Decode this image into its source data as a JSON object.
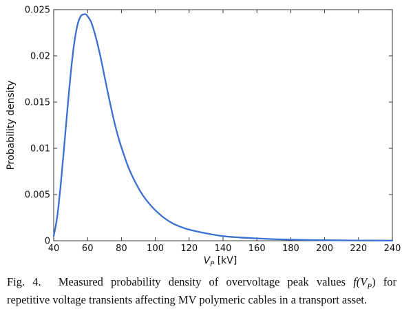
{
  "chart_data": {
    "type": "line",
    "title": "",
    "xlabel": "V_P [kV]",
    "xlabel_main": "V",
    "xlabel_sub": "P",
    "xlabel_unit": " [kV]",
    "ylabel": "Probability density",
    "xlim": [
      40,
      240
    ],
    "ylim": [
      0,
      0.025
    ],
    "x_ticks": [
      40,
      60,
      80,
      100,
      120,
      140,
      160,
      180,
      200,
      220,
      240
    ],
    "x_tick_labels": [
      "40",
      "60",
      "80",
      "100",
      "120",
      "140",
      "160",
      "180",
      "200",
      "220",
      "240"
    ],
    "y_ticks": [
      0,
      0.005,
      0.01,
      0.015,
      0.02,
      0.025
    ],
    "y_tick_labels": [
      "0",
      "0.005",
      "0.01",
      "0.015",
      "0.02",
      "0.025"
    ],
    "grid": false,
    "line_color": "#3b6fd1",
    "series": [
      {
        "x": [
          40,
          42,
          44,
          46,
          48,
          50,
          52,
          54,
          56,
          58,
          59,
          60,
          62,
          64,
          66,
          68,
          70,
          72,
          74,
          76,
          78,
          80,
          84,
          88,
          92,
          96,
          100,
          105,
          110,
          115,
          120,
          130,
          140,
          150,
          160,
          170,
          180,
          190,
          200,
          220,
          240
        ],
        "y": [
          0.0005,
          0.0025,
          0.0058,
          0.0098,
          0.014,
          0.018,
          0.0212,
          0.0233,
          0.0243,
          0.0245,
          0.0245,
          0.0243,
          0.0237,
          0.0226,
          0.0212,
          0.0196,
          0.0178,
          0.016,
          0.0143,
          0.0127,
          0.0113,
          0.0101,
          0.008,
          0.0064,
          0.0051,
          0.0041,
          0.0033,
          0.0025,
          0.0019,
          0.0015,
          0.0012,
          0.0008,
          0.0005,
          0.00035,
          0.00025,
          0.00017,
          0.00012,
          8e-05,
          6e-05,
          3e-05,
          2e-05
        ]
      }
    ]
  },
  "caption": {
    "fig_label": "Fig. 4.",
    "line1_text": "Measured probability density of overvoltage peak values",
    "line1_math": "f(V",
    "line1_math_sub": "P",
    "line1_math_close": ")",
    "line1_end": "for",
    "line2": "repetitive voltage transients affecting MV polymeric cables in a transport asset."
  }
}
